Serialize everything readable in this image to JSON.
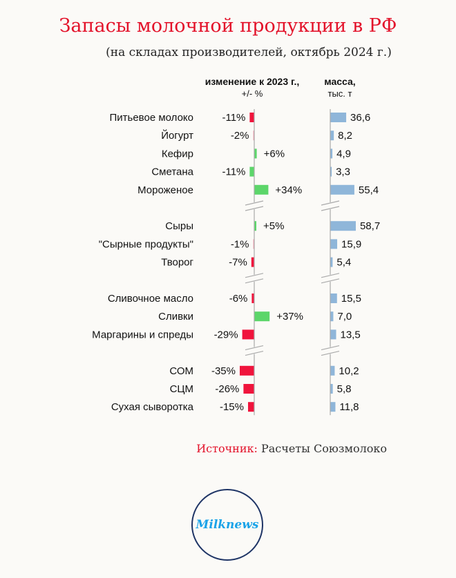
{
  "chart_data": {
    "type": "bar",
    "title": "Запасы молочной продукции в РФ",
    "subtitle": "(на складах производителей, октябрь 2024 г.)",
    "change_header": "изменение к 2023 г.,",
    "change_unit": "+/- %",
    "mass_header": "масса,",
    "mass_unit": "тыс. т",
    "groups": [
      [
        {
          "name": "Питьевое молоко",
          "change": -11,
          "change_label": "-11%",
          "mass": 36.6,
          "mass_label": "36,6",
          "color": "#f0143c"
        },
        {
          "name": "Йогурт",
          "change": -2,
          "change_label": "-2%",
          "mass": 8.2,
          "mass_label": "8,2",
          "color": "#f4a0b0"
        },
        {
          "name": "Кефир",
          "change": 6,
          "change_label": "+6%",
          "mass": 4.9,
          "mass_label": "4,9",
          "color": "#5cd66a"
        },
        {
          "name": "Сметана",
          "change": -11,
          "change_label": "-11%",
          "mass": 3.3,
          "mass_label": "3,3",
          "color": "#5cd66a"
        },
        {
          "name": "Мороженое",
          "change": 34,
          "change_label": "+34%",
          "mass": 55.4,
          "mass_label": "55,4",
          "color": "#5cd66a"
        }
      ],
      [
        {
          "name": "Сыры",
          "change": 5,
          "change_label": "+5%",
          "mass": 58.7,
          "mass_label": "58,7",
          "color": "#5cd66a"
        },
        {
          "name": "\"Сырные продукты\"",
          "change": -1,
          "change_label": "-1%",
          "mass": 15.9,
          "mass_label": "15,9",
          "color": "#f4a0b0"
        },
        {
          "name": "Творог",
          "change": -7,
          "change_label": "-7%",
          "mass": 5.4,
          "mass_label": "5,4",
          "color": "#f0143c"
        }
      ],
      [
        {
          "name": "Сливочное масло",
          "change": -6,
          "change_label": "-6%",
          "mass": 15.5,
          "mass_label": "15,5",
          "color": "#f0143c"
        },
        {
          "name": "Сливки",
          "change": 37,
          "change_label": "+37%",
          "mass": 7.0,
          "mass_label": "7,0",
          "color": "#5cd66a"
        },
        {
          "name": "Маргарины и спреды",
          "change": -29,
          "change_label": "-29%",
          "mass": 13.5,
          "mass_label": "13,5",
          "color": "#f0143c"
        }
      ],
      [
        {
          "name": "СОМ",
          "change": -35,
          "change_label": "-35%",
          "mass": 10.2,
          "mass_label": "10,2",
          "color": "#f0143c"
        },
        {
          "name": "СЦМ",
          "change": -26,
          "change_label": "-26%",
          "mass": 5.8,
          "mass_label": "5,8",
          "color": "#f0143c"
        },
        {
          "name": "Сухая сыворотка",
          "change": -15,
          "change_label": "-15%",
          "mass": 11.8,
          "mass_label": "11,8",
          "color": "#f0143c"
        }
      ]
    ],
    "mass_color": "#8fb6d9"
  },
  "source": {
    "label": "Источник:",
    "text": " Расчеты Союзмолоко"
  },
  "logo": "Milknews"
}
